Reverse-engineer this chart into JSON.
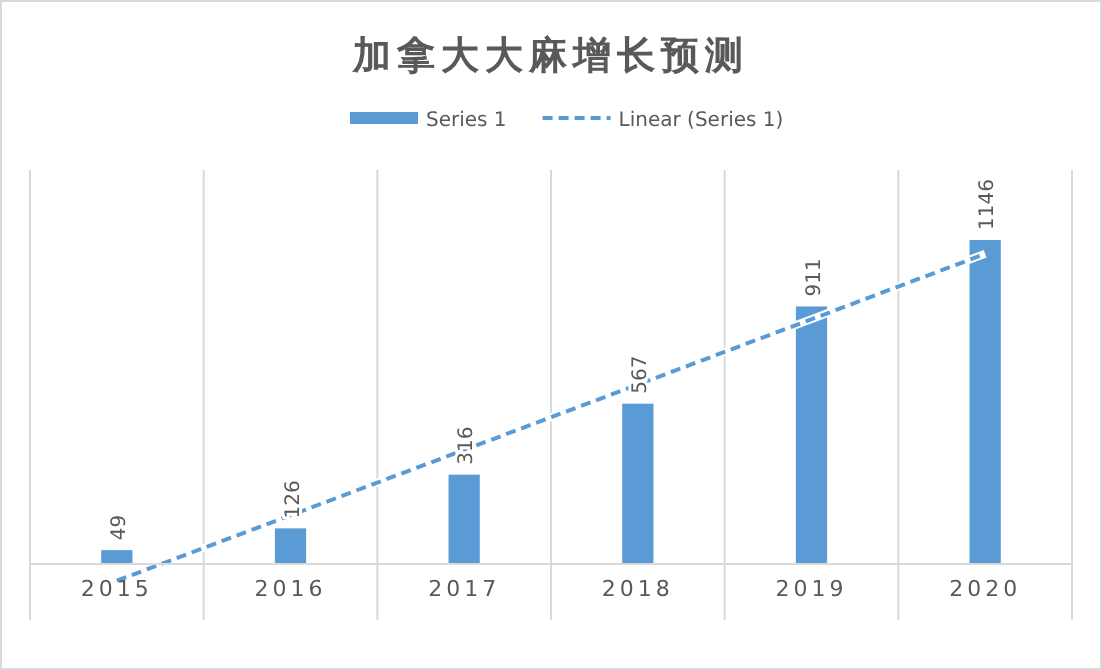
{
  "chart_data": {
    "type": "bar",
    "title": "加拿大大麻增长预测",
    "categories": [
      "2015",
      "2016",
      "2017",
      "2018",
      "2019",
      "2020"
    ],
    "series": [
      {
        "name": "Series 1",
        "color": "#5b9bd5",
        "values": [
          49,
          126,
          316,
          567,
          911,
          1146
        ],
        "value_labels": [
          "49",
          "126",
          "316",
          "567",
          "911",
          "1146"
        ]
      },
      {
        "name": "Linear (Series 1)",
        "type": "line",
        "color": "#5b9bd5",
        "line_style": "dashed",
        "values": [
          -59,
          null,
          null,
          null,
          null,
          1097
        ]
      }
    ],
    "grid": "x",
    "legend": "top"
  }
}
